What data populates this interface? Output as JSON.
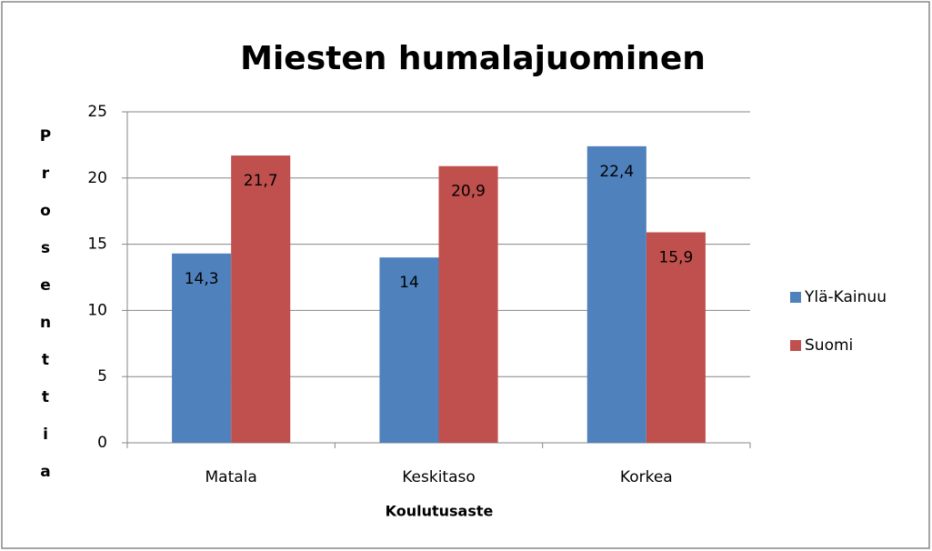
{
  "chart_data": {
    "type": "bar",
    "title": "Miesten humalajuominen",
    "categories": [
      "Matala",
      "Keskitaso",
      "Korkea"
    ],
    "series": [
      {
        "name": "Ylä-Kainuu",
        "color": "#4f81bd",
        "values": [
          14.3,
          14,
          22.4
        ],
        "value_labels": [
          "14,3",
          "14",
          "22,4"
        ]
      },
      {
        "name": "Suomi",
        "color": "#c0504d",
        "values": [
          21.7,
          20.9,
          15.9
        ],
        "value_labels": [
          "21,7",
          "20,9",
          "15,9"
        ]
      }
    ],
    "xlabel": "Koulutusaste",
    "ylabel": "Prosenttia",
    "ylim": [
      0,
      25
    ],
    "yticks": [
      0,
      5,
      10,
      15,
      20,
      25
    ],
    "grid": true,
    "legend": "right"
  }
}
